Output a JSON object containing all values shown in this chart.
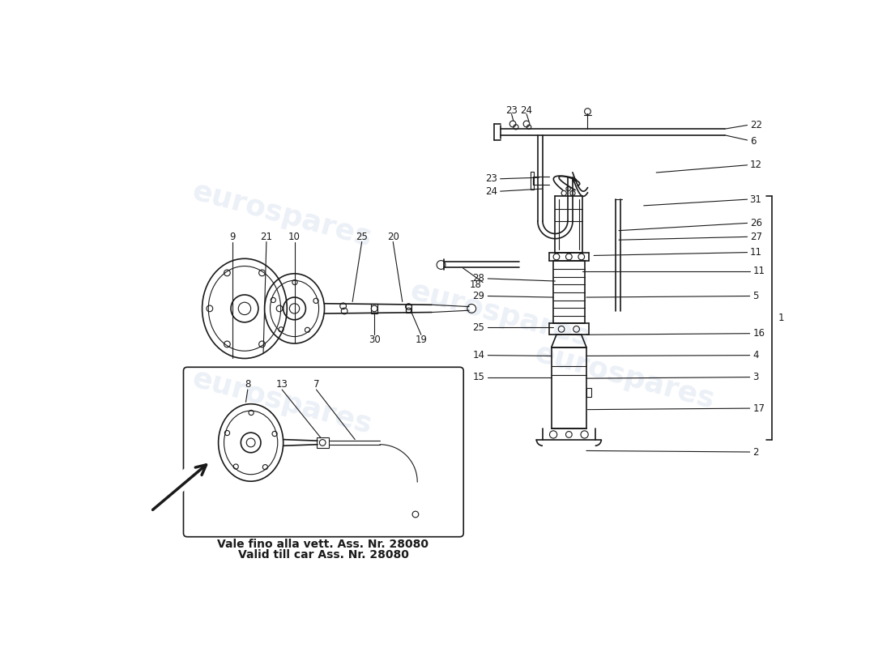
{
  "background_color": "#ffffff",
  "watermark_text": "eurospares",
  "watermark_color": "#c8d4e8",
  "watermark_opacity": 0.35,
  "note_line1": "Vale fino alla vett. Ass. Nr. 28080",
  "note_line2": "Valid till car Ass. Nr. 28080"
}
